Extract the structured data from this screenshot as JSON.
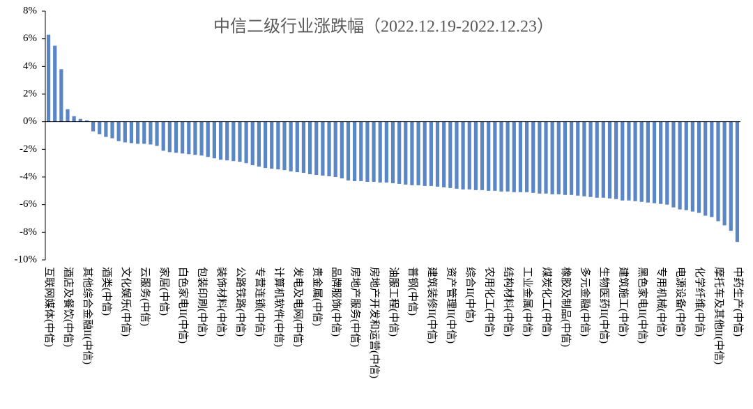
{
  "chart_data": {
    "type": "bar",
    "title": "中信二级行业涨跌幅（2022.12.19-2022.12.23）",
    "color": "#5b86c5",
    "categories": [
      "互联网媒体(中信)",
      null,
      null,
      "酒店及餐饮(中信)",
      null,
      null,
      "其他综合金融II(中信)",
      null,
      null,
      "酒类(中信)",
      null,
      null,
      "文化娱乐(中信)",
      null,
      null,
      "云服务(中信)",
      null,
      null,
      "家居(中信)",
      null,
      null,
      "白色家电II(中信)",
      null,
      null,
      "包装印刷(中信)",
      null,
      null,
      "装饰材料(中信)",
      null,
      null,
      "公路铁路(中信)",
      null,
      null,
      "专营连锁(中信)",
      null,
      null,
      "计算机软件(中信)",
      null,
      null,
      "发电及电网(中信)",
      null,
      null,
      "贵金属(中信)",
      null,
      null,
      "品牌服饰(中信)",
      null,
      null,
      "房地产服务(中信)",
      null,
      null,
      "房地产开发和运营(中信)",
      null,
      null,
      "油服工程(中信)",
      null,
      null,
      "普钢(中信)",
      null,
      null,
      "建筑装修II(中信)",
      null,
      null,
      "资产管理II(中信)",
      null,
      null,
      "综合II(中信)",
      null,
      null,
      "农用化工(中信)",
      null,
      null,
      "结构材料(中信)",
      null,
      null,
      "工业金属(中信)",
      null,
      null,
      "煤炭化工(中信)",
      null,
      null,
      "橡胶及制品(中信)",
      null,
      null,
      "多元金融(中信)",
      null,
      null,
      "生物医药II(中信)",
      null,
      null,
      "建筑施工(中信)",
      null,
      null,
      "黑色家电II(中信)",
      null,
      null,
      "专用机械(中信)",
      null,
      null,
      "电源设备(中信)",
      null,
      null,
      "化学纤维(中信)",
      null,
      null,
      "摩托车及其他II(中信)",
      null,
      null,
      "中药生产(中信)"
    ],
    "values": [
      6.3,
      5.5,
      3.8,
      0.9,
      0.4,
      0.2,
      0.1,
      -0.7,
      -0.9,
      -1.1,
      -1.2,
      -1.4,
      -1.5,
      -1.55,
      -1.6,
      -1.6,
      -1.65,
      -1.75,
      -2.1,
      -2.2,
      -2.25,
      -2.3,
      -2.35,
      -2.4,
      -2.45,
      -2.55,
      -2.65,
      -2.75,
      -2.8,
      -2.85,
      -2.9,
      -3.0,
      -3.15,
      -3.25,
      -3.35,
      -3.4,
      -3.45,
      -3.5,
      -3.6,
      -3.65,
      -3.7,
      -3.8,
      -3.85,
      -3.9,
      -3.95,
      -4.0,
      -4.1,
      -4.25,
      -4.3,
      -4.3,
      -4.35,
      -4.35,
      -4.4,
      -4.4,
      -4.45,
      -4.5,
      -4.55,
      -4.6,
      -4.6,
      -4.65,
      -4.65,
      -4.7,
      -4.75,
      -4.8,
      -4.85,
      -4.9,
      -4.9,
      -4.95,
      -4.95,
      -5.0,
      -5.0,
      -5.05,
      -5.05,
      -5.1,
      -5.1,
      -5.1,
      -5.15,
      -5.2,
      -5.2,
      -5.25,
      -5.25,
      -5.3,
      -5.3,
      -5.35,
      -5.4,
      -5.45,
      -5.5,
      -5.5,
      -5.55,
      -5.6,
      -5.7,
      -5.7,
      -5.75,
      -5.8,
      -5.85,
      -5.9,
      -5.95,
      -6.0,
      -6.2,
      -6.35,
      -6.4,
      -6.5,
      -6.6,
      -6.8,
      -6.9,
      -7.2,
      -7.5,
      -7.9,
      -8.7
    ],
    "ylim": [
      -10,
      8
    ],
    "yticks": [
      {
        "value": -10,
        "label": "-10%"
      },
      {
        "value": -8,
        "label": "-8%"
      },
      {
        "value": -6,
        "label": "-6%"
      },
      {
        "value": -4,
        "label": "-4%"
      },
      {
        "value": -2,
        "label": "-2%"
      },
      {
        "value": 0,
        "label": "0%"
      },
      {
        "value": 2,
        "label": "2%"
      },
      {
        "value": 4,
        "label": "4%"
      },
      {
        "value": 6,
        "label": "6%"
      },
      {
        "value": 8,
        "label": "8%"
      }
    ],
    "grid": false
  }
}
